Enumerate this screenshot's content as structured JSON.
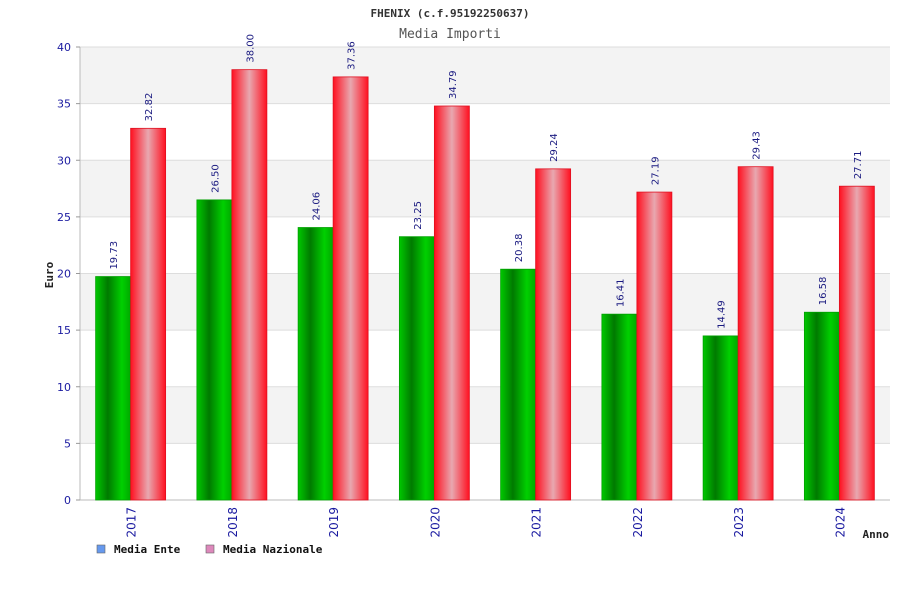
{
  "chart_data": {
    "type": "bar",
    "title": "FHENIX (c.f.95192250637)",
    "subtitle": "Media Importi",
    "xlabel": "Anno",
    "ylabel": "Euro",
    "categories": [
      "2017",
      "2018",
      "2019",
      "2020",
      "2021",
      "2022",
      "2023",
      "2024"
    ],
    "series": [
      {
        "name": "Media Ente",
        "values": [
          19.73,
          26.5,
          24.06,
          23.25,
          20.38,
          16.41,
          14.49,
          16.58
        ],
        "color": "#00aa00",
        "legend_color": "#6699ee"
      },
      {
        "name": "Media Nazionale",
        "values": [
          32.82,
          38.0,
          37.36,
          34.79,
          29.24,
          27.19,
          29.43,
          27.71
        ],
        "color": "#ee1122",
        "legend_color": "#dd88bb"
      }
    ],
    "ylim": [
      0,
      40
    ],
    "yticks": [
      0,
      5,
      10,
      15,
      20,
      25,
      30,
      35,
      40
    ],
    "grid": true,
    "legend_position": "bottom-left"
  }
}
